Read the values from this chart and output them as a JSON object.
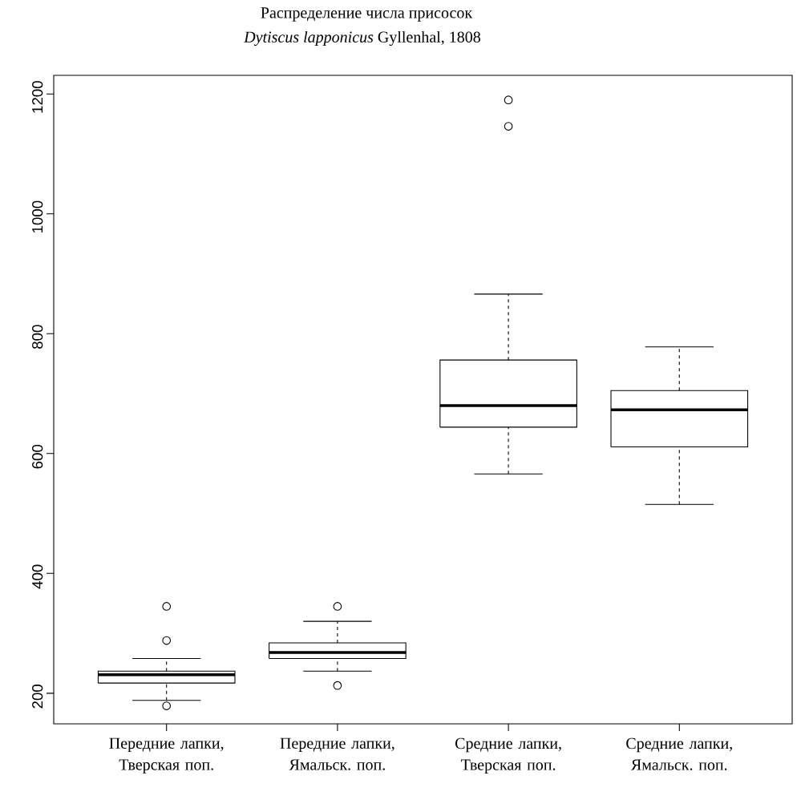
{
  "chart_data": {
    "type": "box",
    "title": "Распределение числа присосок",
    "subtitle": "*Dytiscus lapponicus* Gyllenhal, 1808",
    "categories": [
      "Передние лапки, Тверская поп.",
      "Передние лапки, Ямальск. поп.",
      "Средние лапки, Тверская поп.",
      "Средние лапки, Ямальск. поп."
    ],
    "boxes": [
      {
        "low": 188,
        "q1": 217,
        "median": 231,
        "q3": 237,
        "high": 258,
        "outliers": [
          345,
          288,
          179
        ]
      },
      {
        "low": 237,
        "q1": 258,
        "median": 268,
        "q3": 284,
        "high": 320,
        "outliers": [
          345,
          213
        ]
      },
      {
        "low": 566,
        "q1": 644,
        "median": 680,
        "q3": 756,
        "high": 866,
        "outliers": [
          1190,
          1146
        ]
      },
      {
        "low": 515,
        "q1": 611,
        "median": 673,
        "q3": 705,
        "high": 778
      }
    ],
    "ylim": [
      149,
      1231
    ],
    "yticks": [
      200,
      400,
      600,
      800,
      1000,
      1200
    ]
  }
}
